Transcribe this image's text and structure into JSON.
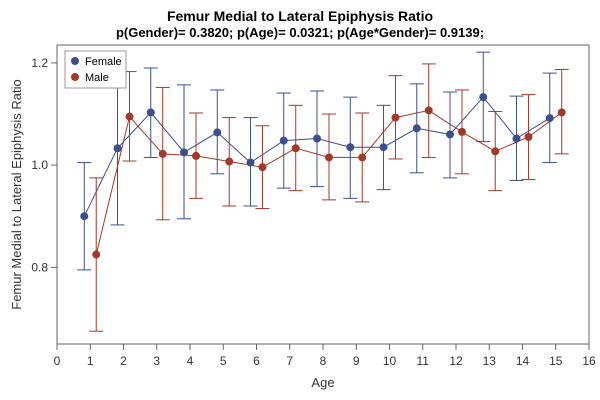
{
  "title_line1": "Femur Medial to Lateral Epiphysis Ratio",
  "title_line2": "p(Gender)= 0.3820; p(Age)= 0.0321; p(Age*Gender)= 0.9139;",
  "chart_data": {
    "type": "line",
    "xlabel": "Age",
    "ylabel": "Femur Medial to Lateral Epiphysis Ratio",
    "xlim": [
      0,
      16
    ],
    "ylim": [
      0.65,
      1.235
    ],
    "xticks": [
      0,
      1,
      2,
      3,
      4,
      5,
      6,
      7,
      8,
      9,
      10,
      11,
      12,
      13,
      14,
      15,
      16
    ],
    "yticks": [
      0.8,
      1.0,
      1.2
    ],
    "ytick_labels": [
      "0.8",
      "1.0",
      "1.2"
    ],
    "grid": false,
    "legend_position": "top-left",
    "error_bars": true,
    "series": [
      {
        "name": "Female",
        "color": "#3F4F8C",
        "x": [
          1,
          2,
          3,
          4,
          5,
          6,
          7,
          8,
          9,
          10,
          11,
          12,
          13,
          14,
          15
        ],
        "y": [
          0.9,
          1.033,
          1.103,
          1.025,
          1.064,
          1.005,
          1.048,
          1.052,
          1.035,
          1.035,
          1.072,
          1.06,
          1.133,
          1.052,
          1.092
        ],
        "lower": [
          0.795,
          0.883,
          1.015,
          0.895,
          0.983,
          0.92,
          0.955,
          0.958,
          0.935,
          0.952,
          0.985,
          0.975,
          1.046,
          0.97,
          1.005
        ],
        "upper": [
          1.005,
          1.183,
          1.19,
          1.157,
          1.147,
          1.093,
          1.141,
          1.145,
          1.133,
          1.117,
          1.159,
          1.143,
          1.221,
          1.135,
          1.18
        ]
      },
      {
        "name": "Male",
        "color": "#A03A2C",
        "x": [
          1,
          2,
          3,
          4,
          5,
          6,
          7,
          8,
          9,
          10,
          11,
          12,
          13,
          14,
          15
        ],
        "y": [
          0.825,
          1.095,
          1.022,
          1.018,
          1.007,
          0.996,
          1.033,
          1.015,
          1.015,
          1.093,
          1.107,
          1.065,
          1.027,
          1.055,
          1.103
        ],
        "lower": [
          0.675,
          1.008,
          0.893,
          0.935,
          0.92,
          0.915,
          0.95,
          0.932,
          0.928,
          1.012,
          1.015,
          0.983,
          0.95,
          0.972,
          1.022
        ],
        "upper": [
          0.975,
          1.183,
          1.152,
          1.102,
          1.093,
          1.077,
          1.117,
          1.1,
          1.102,
          1.175,
          1.198,
          1.147,
          1.105,
          1.138,
          1.187
        ]
      }
    ]
  }
}
